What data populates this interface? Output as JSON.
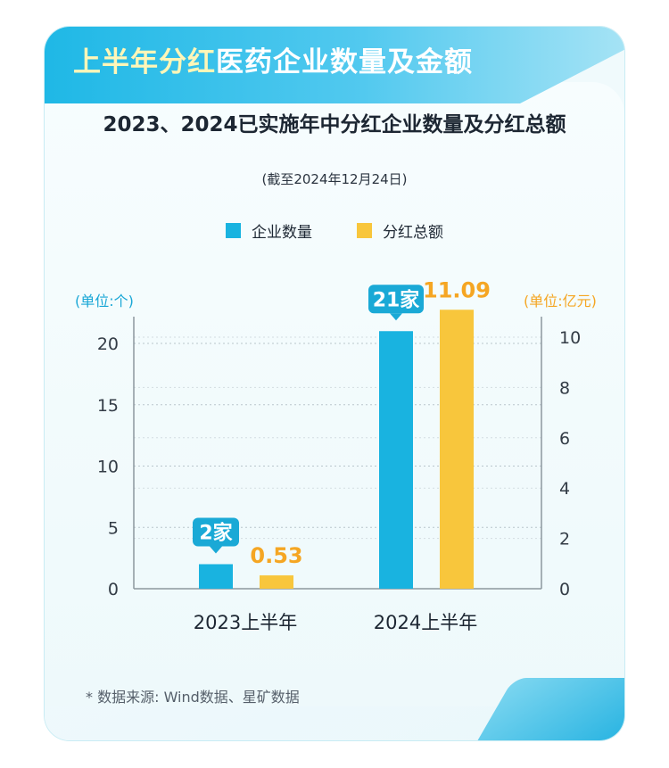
{
  "header": {
    "title_highlight": "上半年分红",
    "title_rest": "医药企业数量及金额"
  },
  "colors": {
    "companies": "#19b3e0",
    "amount": "#f8c63c",
    "amount_text": "#f5a623",
    "banner": "#1fb8e6"
  },
  "chart_data": {
    "type": "bar",
    "title": "2023、2024已实施年中分红企业数量及分红总额",
    "subtitle": "(截至2024年12月24日)",
    "categories": [
      "2023上半年",
      "2024上半年"
    ],
    "series": [
      {
        "name": "企业数量",
        "values": [
          2,
          21
        ],
        "labels": [
          "2家",
          "21家"
        ],
        "axis": "left",
        "color": "#19b3e0"
      },
      {
        "name": "分红总额",
        "values": [
          0.53,
          11.09
        ],
        "labels": [
          "0.53",
          "11.09"
        ],
        "axis": "right",
        "color": "#f8c63c"
      }
    ],
    "y_left": {
      "unit_label": "(单位:个)",
      "ticks": [
        "0",
        "5",
        "10",
        "15",
        "20"
      ],
      "lim": [
        0,
        22
      ]
    },
    "y_right": {
      "unit_label": "(单位:亿元)",
      "ticks": [
        "0",
        "2",
        "4",
        "6",
        "8",
        "10"
      ],
      "lim": [
        0,
        11
      ]
    },
    "grid": true,
    "legend": "top-center"
  },
  "footer": {
    "source": "* 数据来源: Wind数据、星矿数据"
  }
}
